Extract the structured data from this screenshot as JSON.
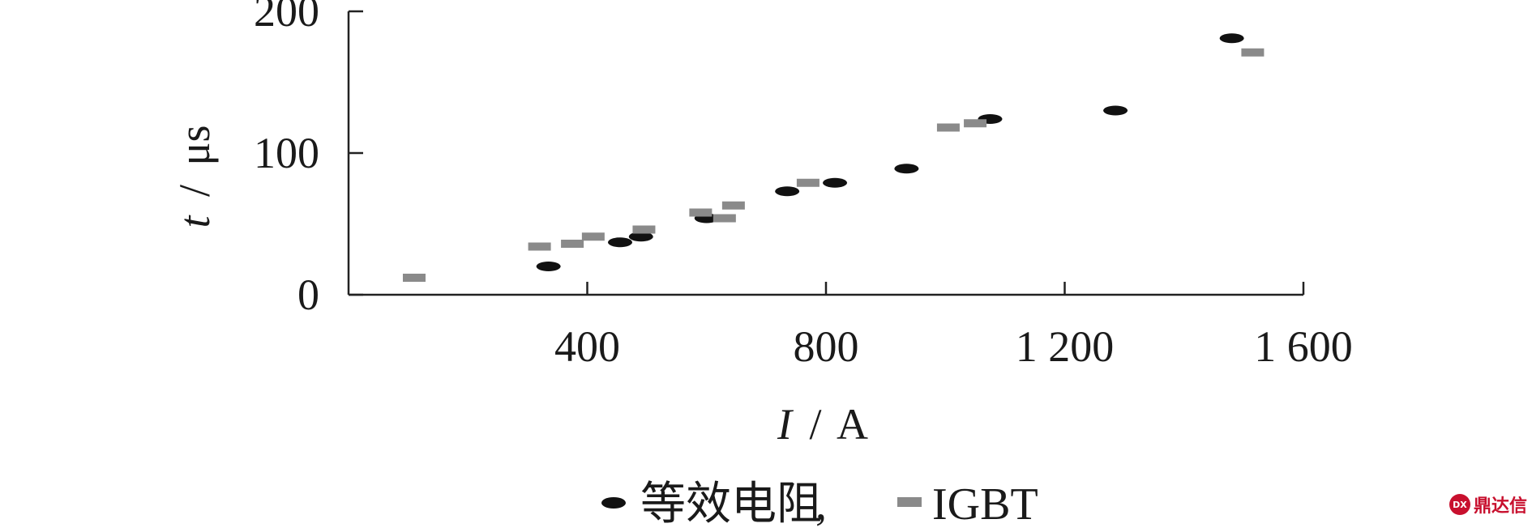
{
  "chart_data": {
    "type": "scatter",
    "title": "",
    "x_axis": {
      "label_var": "I",
      "label_unit": "A",
      "range": [
        0,
        1600
      ],
      "ticks": [
        400,
        800,
        1200,
        1600
      ],
      "tick_labels": [
        "400",
        "800",
        "1 200",
        "1 600"
      ]
    },
    "y_axis": {
      "label_var": "t",
      "label_unit": "μs",
      "range": [
        0,
        200
      ],
      "ticks": [
        0,
        100,
        200
      ],
      "tick_labels": [
        "0",
        "100",
        "200"
      ]
    },
    "grid": false,
    "legend_position": "bottom",
    "series": [
      {
        "name": "等效电阻",
        "marker": "ellipse",
        "color": "#111111",
        "points": [
          {
            "x": 335,
            "y": 20
          },
          {
            "x": 455,
            "y": 37
          },
          {
            "x": 490,
            "y": 41
          },
          {
            "x": 600,
            "y": 54
          },
          {
            "x": 735,
            "y": 73
          },
          {
            "x": 815,
            "y": 79
          },
          {
            "x": 935,
            "y": 89
          },
          {
            "x": 1075,
            "y": 124
          },
          {
            "x": 1285,
            "y": 130
          },
          {
            "x": 1480,
            "y": 181
          }
        ]
      },
      {
        "name": "IGBT",
        "marker": "rect",
        "color": "#8a8a8a",
        "points": [
          {
            "x": 110,
            "y": 12
          },
          {
            "x": 320,
            "y": 34
          },
          {
            "x": 375,
            "y": 36
          },
          {
            "x": 410,
            "y": 41
          },
          {
            "x": 495,
            "y": 46
          },
          {
            "x": 590,
            "y": 58
          },
          {
            "x": 630,
            "y": 54
          },
          {
            "x": 645,
            "y": 63
          },
          {
            "x": 770,
            "y": 79
          },
          {
            "x": 1005,
            "y": 118
          },
          {
            "x": 1050,
            "y": 121
          },
          {
            "x": 1515,
            "y": 171
          }
        ]
      }
    ]
  },
  "legend": {
    "separator": ",",
    "items": [
      {
        "label": "等效电阻",
        "marker": "ellipse",
        "color": "#111111"
      },
      {
        "label": "IGBT",
        "marker": "rect",
        "color": "#8a8a8a"
      }
    ]
  },
  "watermark": {
    "badge_text": "DX",
    "text": "鼎达信",
    "color": "#c8102e"
  }
}
